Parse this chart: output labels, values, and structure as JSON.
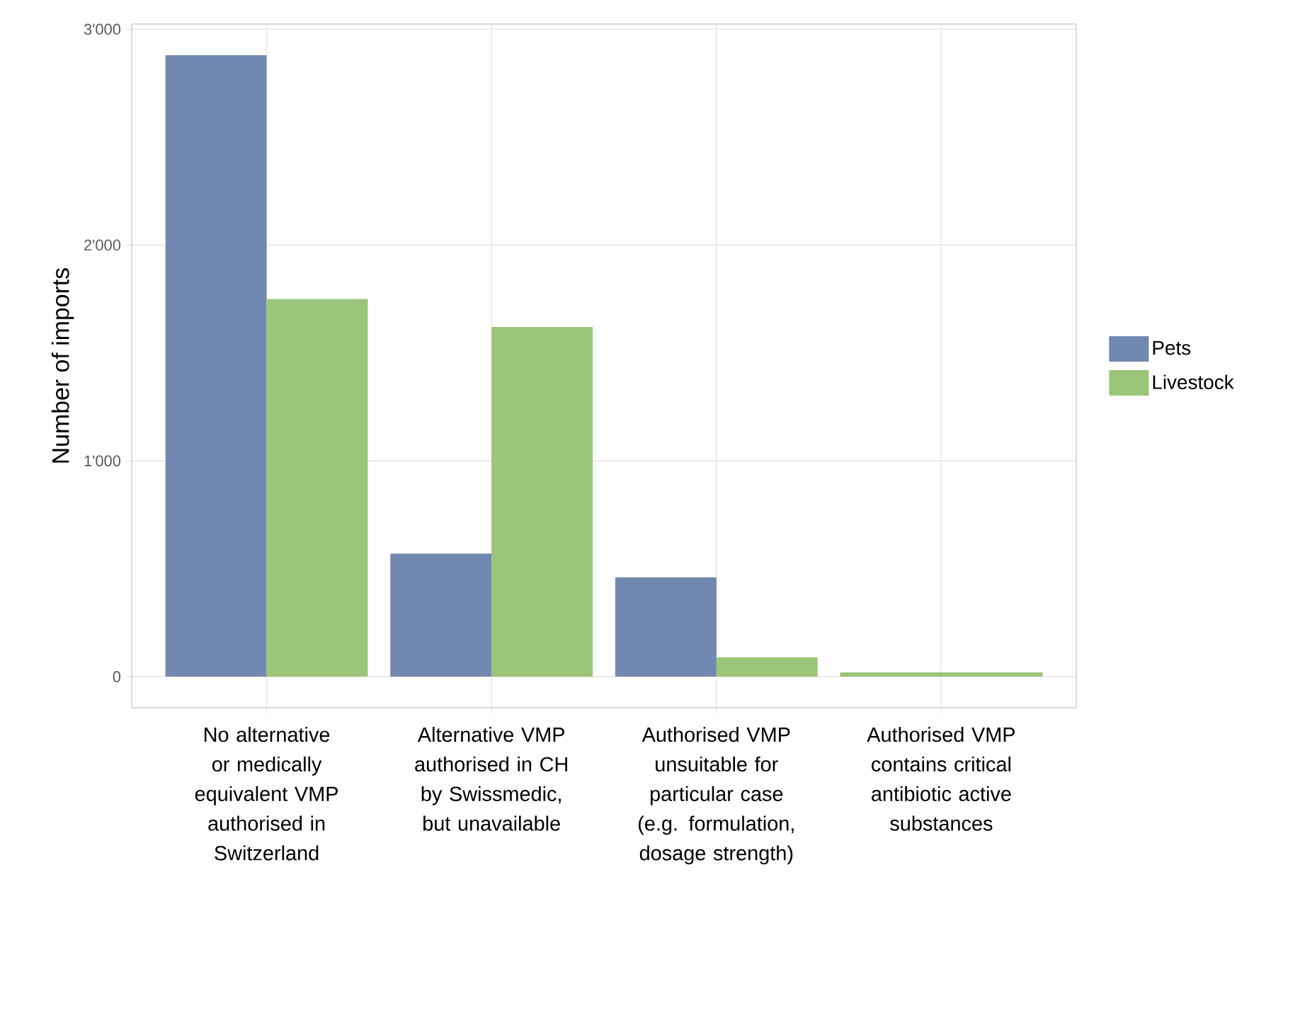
{
  "chart_data": {
    "type": "bar",
    "ylabel": "Number of imports",
    "categories": [
      "No alternative or medically equivalent VMP authorised in Switzerland",
      "Alternative VMP authorised in CH by Swissmedic, but unavailable",
      "Authorised VMP unsuitable for particular case (e.g. formulation, dosage strength)",
      "Authorised VMP contains critical antibiotic active substances"
    ],
    "series": [
      {
        "name": "Pets",
        "color": "#7189b1",
        "values": [
          2880,
          570,
          460,
          null
        ]
      },
      {
        "name": "Livestock",
        "color": "#9bc578",
        "values": [
          1750,
          1620,
          90,
          20
        ]
      }
    ],
    "ylim": [
      -144,
      3024
    ],
    "yticks": [
      {
        "value": 0,
        "label": "0"
      },
      {
        "value": 1000,
        "label": "1'000"
      },
      {
        "value": 2000,
        "label": "2'000"
      },
      {
        "value": 3000,
        "label": "3'000"
      }
    ],
    "grid": true,
    "legend": "right"
  }
}
